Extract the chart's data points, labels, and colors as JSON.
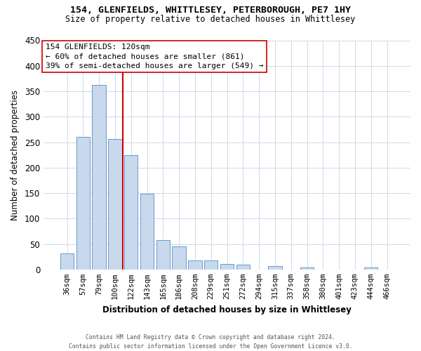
{
  "title_line1": "154, GLENFIELDS, WHITTLESEY, PETERBOROUGH, PE7 1HY",
  "title_line2": "Size of property relative to detached houses in Whittlesey",
  "xlabel": "Distribution of detached houses by size in Whittlesey",
  "ylabel": "Number of detached properties",
  "bar_labels": [
    "36sqm",
    "57sqm",
    "79sqm",
    "100sqm",
    "122sqm",
    "143sqm",
    "165sqm",
    "186sqm",
    "208sqm",
    "229sqm",
    "251sqm",
    "272sqm",
    "294sqm",
    "315sqm",
    "337sqm",
    "358sqm",
    "380sqm",
    "401sqm",
    "423sqm",
    "444sqm",
    "466sqm"
  ],
  "bar_values": [
    32,
    260,
    362,
    256,
    225,
    148,
    57,
    45,
    18,
    18,
    11,
    10,
    0,
    6,
    0,
    4,
    0,
    0,
    0,
    4,
    0
  ],
  "bar_color": "#c8d9ee",
  "bar_edge_color": "#6699cc",
  "vline_color": "#cc0000",
  "annotation_line1": "154 GLENFIELDS: 120sqm",
  "annotation_line2": "← 60% of detached houses are smaller (861)",
  "annotation_line3": "39% of semi-detached houses are larger (549) →",
  "annotation_box_color": "#ffffff",
  "annotation_box_edge": "#cc0000",
  "ylim_max": 450,
  "yticks": [
    0,
    50,
    100,
    150,
    200,
    250,
    300,
    350,
    400,
    450
  ],
  "background_color": "#ffffff",
  "grid_color": "#d0d8e8",
  "footer_line1": "Contains HM Land Registry data © Crown copyright and database right 2024.",
  "footer_line2": "Contains public sector information licensed under the Open Government Licence v3.0."
}
